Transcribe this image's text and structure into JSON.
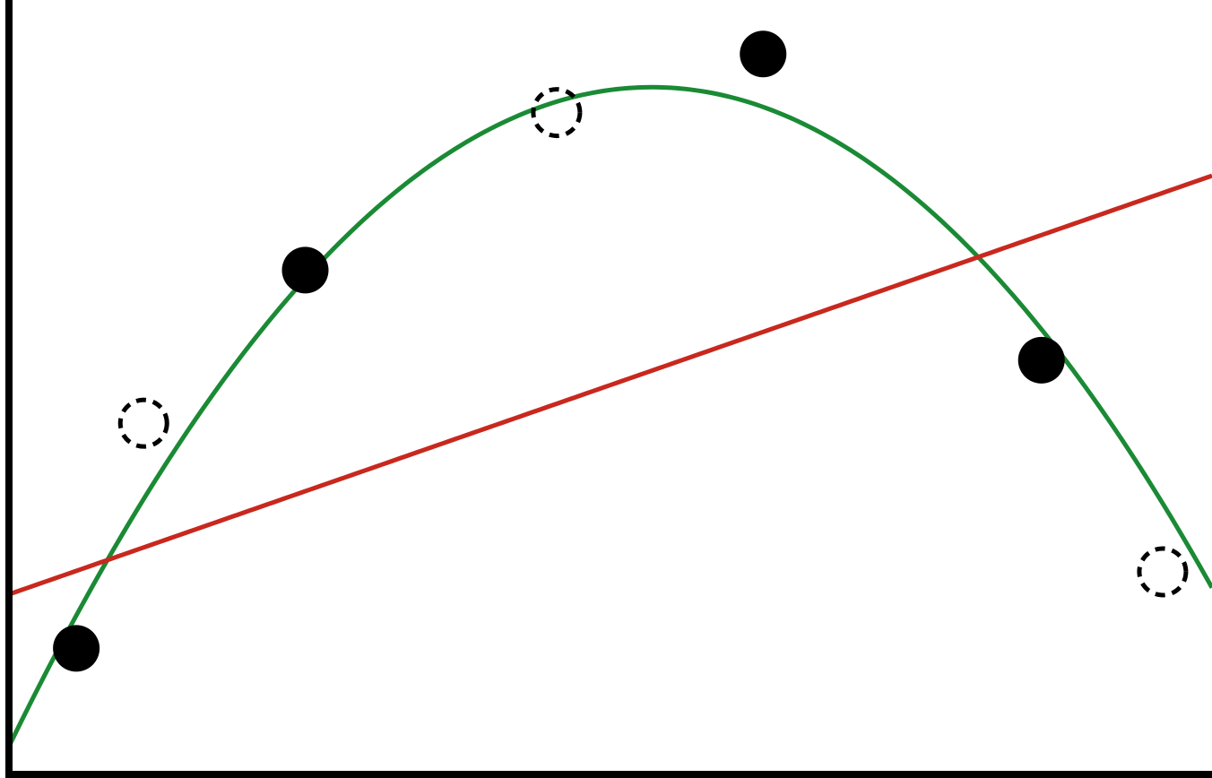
{
  "colors": {
    "curve": "#1a8a35",
    "line": "#c8281e",
    "point": "#000000",
    "axis": "#000000",
    "background": "#ffffff"
  },
  "chart_data": {
    "type": "scatter",
    "title": "",
    "xlabel": "",
    "ylabel": "",
    "xlim": [
      0,
      13.4
    ],
    "ylim": [
      0,
      8.6
    ],
    "grid": false,
    "legend": "none",
    "series": [
      {
        "marker": "filled",
        "points": [
          [
            0.75,
            1.4
          ],
          [
            3.3,
            5.6
          ],
          [
            8.4,
            8.0
          ],
          [
            11.5,
            4.6
          ]
        ]
      },
      {
        "marker": "hollow-dashed",
        "points": [
          [
            1.5,
            3.9
          ],
          [
            6.1,
            7.35
          ],
          [
            12.85,
            2.25
          ]
        ]
      }
    ],
    "fits": [
      {
        "kind": "quadratic",
        "coefficients": [
          -0.14276,
          2.0445,
          0.3117
        ],
        "x_range": [
          0,
          13.4
        ]
      },
      {
        "kind": "linear",
        "coefficients": [
          0.3469,
          2.0
        ],
        "x_range": [
          0,
          13.4
        ]
      }
    ]
  }
}
